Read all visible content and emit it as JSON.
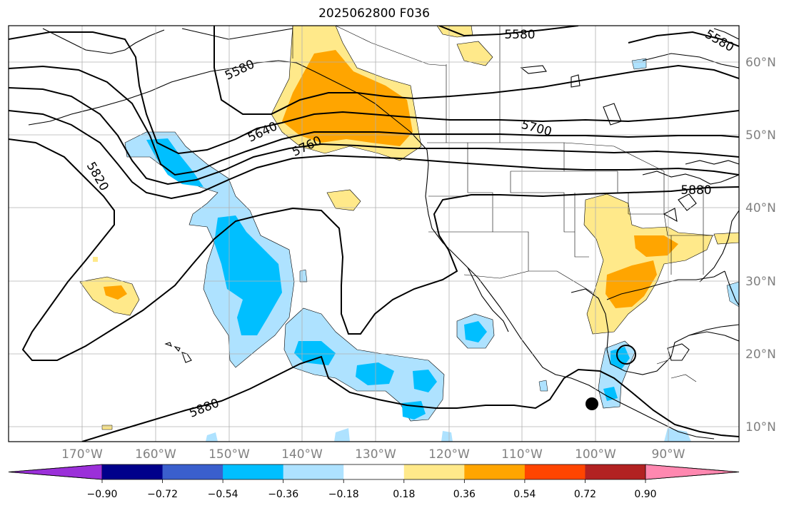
{
  "title": "2025062800 F036",
  "map": {
    "lon_ticks": [
      "170°W",
      "160°W",
      "150°W",
      "140°W",
      "130°W",
      "120°W",
      "110°W",
      "100°W",
      "90°W"
    ],
    "lat_ticks": [
      "60°N",
      "50°N",
      "40°N",
      "30°N",
      "20°N",
      "10°N"
    ],
    "contour_labels": [
      "5580",
      "5580",
      "5580",
      "5640",
      "5700",
      "5760",
      "5820",
      "5880",
      "5880"
    ],
    "colors": {
      "neg_strong": "#00bfff",
      "neg_weak": "#aee2ff",
      "pos_weak": "#ffe98a",
      "pos_medium": "#ffa500",
      "contour": "#000000",
      "grid": "#b0b0b0"
    },
    "marker": "black-dot"
  },
  "colorbar": {
    "colors": [
      "#9b30d9",
      "#00008b",
      "#3a5fcd",
      "#00bfff",
      "#aee2ff",
      "#ffffff",
      "#ffe98a",
      "#ffa500",
      "#ff4500",
      "#b22222",
      "#ff88b0"
    ],
    "labels": [
      "−0.90",
      "−0.72",
      "−0.54",
      "−0.36",
      "−0.18",
      "0.18",
      "0.36",
      "0.54",
      "0.72",
      "0.90"
    ]
  }
}
